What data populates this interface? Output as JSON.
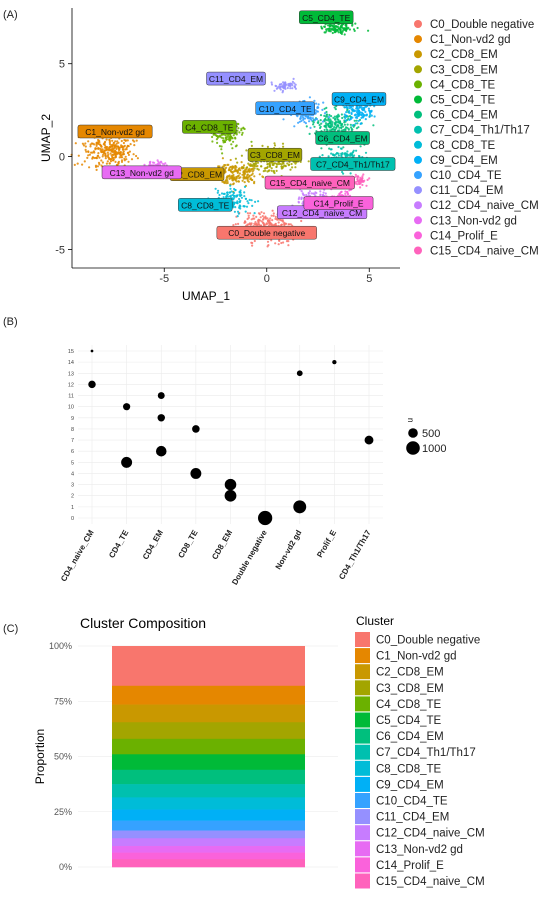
{
  "panels": {
    "a": "(A)",
    "b": "(B)",
    "c": "(C)"
  },
  "chart_data": [
    {
      "type": "scatter",
      "panel": "(A)",
      "xlabel": "UMAP_1",
      "ylabel": "UMAP_2",
      "xlim": [
        -9.5,
        6.5
      ],
      "ylim": [
        -6,
        8
      ],
      "xticks": [
        -5,
        0,
        5
      ],
      "yticks": [
        -5,
        0,
        5
      ],
      "legend_position": "right",
      "clusters": [
        {
          "id": 0,
          "name": "C0_Double negative",
          "color": "#F8766D",
          "center": [
            0,
            -3.8
          ],
          "spread": [
            1.2,
            0.7
          ],
          "count": 320,
          "label_pos": [
            0,
            -4.1
          ]
        },
        {
          "id": 1,
          "name": "C1_Non-vd2 gd",
          "color": "#E58700",
          "center": [
            -7.6,
            0.3
          ],
          "spread": [
            1.1,
            0.8
          ],
          "count": 300,
          "label_pos": [
            -7.4,
            1.35
          ]
        },
        {
          "id": 2,
          "name": "C2_CD8_EM",
          "color": "#C99800",
          "center": [
            -1.5,
            -0.9
          ],
          "spread": [
            1.0,
            0.6
          ],
          "count": 200,
          "label_pos": [
            -3.4,
            -0.95
          ]
        },
        {
          "id": 3,
          "name": "C3_CD8_EM",
          "color": "#A3A500",
          "center": [
            0.3,
            -0.2
          ],
          "spread": [
            1.2,
            0.6
          ],
          "count": 210,
          "label_pos": [
            0.4,
            0.1
          ]
        },
        {
          "id": 4,
          "name": "C4_CD8_TE",
          "color": "#6BB100",
          "center": [
            -2.0,
            1.2
          ],
          "spread": [
            0.7,
            0.6
          ],
          "count": 150,
          "label_pos": [
            -2.8,
            1.6
          ]
        },
        {
          "id": 5,
          "name": "C5_CD4_TE",
          "color": "#00BA38",
          "center": [
            3.4,
            6.9
          ],
          "spread": [
            0.7,
            0.25
          ],
          "count": 120,
          "label_pos": [
            2.9,
            7.5
          ]
        },
        {
          "id": 6,
          "name": "C6_CD4_EM",
          "color": "#00BF7D",
          "center": [
            3.3,
            1.6
          ],
          "spread": [
            1.0,
            0.8
          ],
          "count": 240,
          "label_pos": [
            3.7,
            1.0
          ]
        },
        {
          "id": 7,
          "name": "C7_CD4_Th1/Th17",
          "color": "#00C0AF",
          "center": [
            3.8,
            -0.1
          ],
          "spread": [
            0.8,
            0.5
          ],
          "count": 120,
          "label_pos": [
            4.2,
            -0.4
          ]
        },
        {
          "id": 8,
          "name": "C8_CD8_TE",
          "color": "#00BCD8",
          "center": [
            -1.7,
            -2.4
          ],
          "spread": [
            0.8,
            0.6
          ],
          "count": 140,
          "label_pos": [
            -3.0,
            -2.6
          ]
        },
        {
          "id": 9,
          "name": "C9_CD4_EM",
          "color": "#00B0F6",
          "center": [
            4.5,
            2.5
          ],
          "spread": [
            0.7,
            0.6
          ],
          "count": 130,
          "label_pos": [
            4.5,
            3.1
          ]
        },
        {
          "id": 10,
          "name": "C10_CD4_TE",
          "color": "#35A2FF",
          "center": [
            2.0,
            2.3
          ],
          "spread": [
            0.7,
            0.5
          ],
          "count": 120,
          "label_pos": [
            0.9,
            2.6
          ]
        },
        {
          "id": 11,
          "name": "C11_CD4_EM",
          "color": "#9590FF",
          "center": [
            0.9,
            3.8
          ],
          "spread": [
            0.6,
            0.25
          ],
          "count": 60,
          "label_pos": [
            -1.5,
            4.2
          ]
        },
        {
          "id": 12,
          "name": "C12_CD4_naive_CM",
          "color": "#C77CFF",
          "center": [
            2.3,
            -2.3
          ],
          "spread": [
            0.8,
            0.5
          ],
          "count": 120,
          "label_pos": [
            2.7,
            -3.0
          ]
        },
        {
          "id": 13,
          "name": "C13_Non-vd2 gd",
          "color": "#E76BF3",
          "center": [
            -5.4,
            -0.6
          ],
          "spread": [
            0.5,
            0.4
          ],
          "count": 80,
          "label_pos": [
            -6.1,
            -0.85
          ]
        },
        {
          "id": 14,
          "name": "C14_Prolif_E",
          "color": "#FA62DB",
          "center": [
            3.7,
            -2.1
          ],
          "spread": [
            0.5,
            0.4
          ],
          "count": 60,
          "label_pos": [
            3.5,
            -2.5
          ]
        },
        {
          "id": 15,
          "name": "C15_CD4_naive_CM",
          "color": "#FF62BC",
          "center": [
            4.5,
            -1.3
          ],
          "spread": [
            0.4,
            0.3
          ],
          "count": 50,
          "label_pos": [
            2.1,
            -1.4
          ]
        }
      ]
    },
    {
      "type": "scatter",
      "panel": "(B)",
      "categories": [
        "CD4_naive_CM",
        "CD4_TE",
        "CD4_EM",
        "CD8_TE",
        "CD8_EM",
        "Double negative",
        "Non-vd2 gd",
        "Prolif_E",
        "CD4_Th1/Th17"
      ],
      "yticks": [
        0,
        1,
        2,
        3,
        4,
        5,
        6,
        7,
        8,
        9,
        10,
        11,
        12,
        13,
        14,
        15
      ],
      "legend_title": "n",
      "size_legend": [
        500,
        1000
      ],
      "points": [
        {
          "cat": "CD4_naive_CM",
          "y": 15,
          "n": 40
        },
        {
          "cat": "CD4_naive_CM",
          "y": 12,
          "n": 300
        },
        {
          "cat": "CD4_TE",
          "y": 10,
          "n": 280
        },
        {
          "cat": "CD4_TE",
          "y": 5,
          "n": 650
        },
        {
          "cat": "CD4_EM",
          "y": 11,
          "n": 260
        },
        {
          "cat": "CD4_EM",
          "y": 9,
          "n": 300
        },
        {
          "cat": "CD4_EM",
          "y": 6,
          "n": 600
        },
        {
          "cat": "CD8_TE",
          "y": 8,
          "n": 310
        },
        {
          "cat": "CD8_TE",
          "y": 4,
          "n": 640
        },
        {
          "cat": "CD8_EM",
          "y": 3,
          "n": 720
        },
        {
          "cat": "CD8_EM",
          "y": 2,
          "n": 750
        },
        {
          "cat": "Double negative",
          "y": 0,
          "n": 1100
        },
        {
          "cat": "Non-vd2 gd",
          "y": 13,
          "n": 180
        },
        {
          "cat": "Non-vd2 gd",
          "y": 1,
          "n": 900
        },
        {
          "cat": "Prolif_E",
          "y": 14,
          "n": 100
        },
        {
          "cat": "CD4_Th1/Th17",
          "y": 7,
          "n": 420
        }
      ]
    },
    {
      "type": "bar",
      "panel": "(C)",
      "title": "Cluster Composition",
      "ylabel": "Proportion",
      "ylim": [
        0,
        1
      ],
      "yticks": [
        "0%",
        "25%",
        "50%",
        "75%",
        "100%"
      ],
      "legend_title": "Cluster",
      "stacked": true,
      "series": [
        {
          "name": "C0_Double negative",
          "color": "#F8766D",
          "value": 0.18
        },
        {
          "name": "C1_Non-vd2 gd",
          "color": "#E58700",
          "value": 0.085
        },
        {
          "name": "C2_CD8_EM",
          "color": "#C99800",
          "value": 0.08
        },
        {
          "name": "C3_CD8_EM",
          "color": "#A3A500",
          "value": 0.075
        },
        {
          "name": "C4_CD8_TE",
          "color": "#6BB100",
          "value": 0.07
        },
        {
          "name": "C5_CD4_TE",
          "color": "#00BA38",
          "value": 0.07
        },
        {
          "name": "C6_CD4_EM",
          "color": "#00BF7D",
          "value": 0.065
        },
        {
          "name": "C7_CD4_Th1/Th17",
          "color": "#00C0AF",
          "value": 0.06
        },
        {
          "name": "C8_CD8_TE",
          "color": "#00BCD8",
          "value": 0.055
        },
        {
          "name": "C9_CD4_EM",
          "color": "#00B0F6",
          "value": 0.05
        },
        {
          "name": "C10_CD4_TE",
          "color": "#35A2FF",
          "value": 0.045
        },
        {
          "name": "C11_CD4_EM",
          "color": "#9590FF",
          "value": 0.035
        },
        {
          "name": "C12_CD4_naive_CM",
          "color": "#C77CFF",
          "value": 0.035
        },
        {
          "name": "C13_Non-vd2 gd",
          "color": "#E76BF3",
          "value": 0.03
        },
        {
          "name": "C14_Prolif_E",
          "color": "#FA62DB",
          "value": 0.03
        },
        {
          "name": "C15_CD4_naive_CM",
          "color": "#FF62BC",
          "value": 0.035
        }
      ]
    }
  ]
}
